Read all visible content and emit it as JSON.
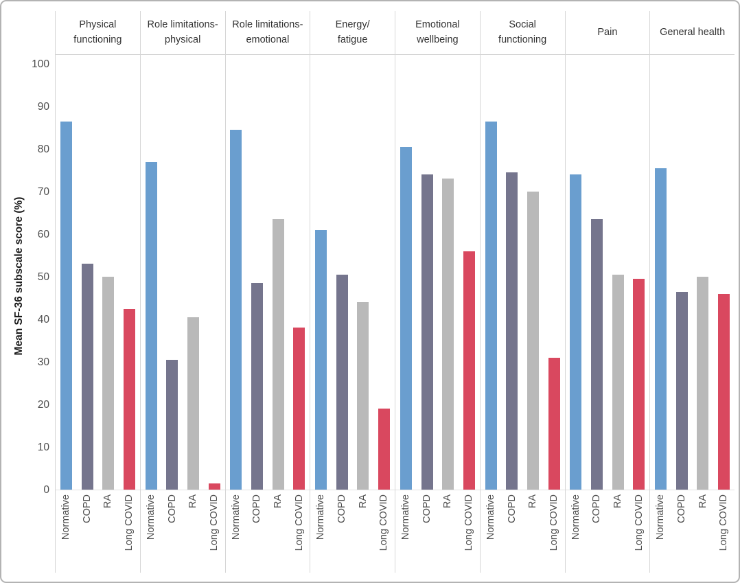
{
  "chart_data": {
    "type": "bar",
    "title": "",
    "ylabel": "Mean SF-36 subscale score (%)",
    "ylim": [
      0,
      100
    ],
    "ytick_step": 10,
    "grid": false,
    "legend": "none (groups labeled on x-axis)",
    "groups": [
      "Normative",
      "COPD",
      "RA",
      "Long COVID"
    ],
    "colors": [
      "#6A9ECF",
      "#75758D",
      "#B9B9B9",
      "#D9485F"
    ],
    "panels": [
      {
        "title": "Physical functioning",
        "title_lines": [
          "Physical",
          "functioning"
        ],
        "values": [
          86.5,
          53.0,
          50.0,
          42.5
        ]
      },
      {
        "title": "Role limitations-physical",
        "title_lines": [
          "Role limitations-",
          "physical"
        ],
        "values": [
          77.0,
          30.5,
          40.5,
          1.5
        ]
      },
      {
        "title": "Role limitations-emotional",
        "title_lines": [
          "Role limitations-",
          "emotional"
        ],
        "values": [
          84.5,
          48.5,
          63.5,
          38.0
        ]
      },
      {
        "title": "Energy/fatigue",
        "title_lines": [
          "Energy/",
          "fatigue"
        ],
        "values": [
          61.0,
          50.5,
          44.0,
          19.0
        ]
      },
      {
        "title": "Emotional wellbeing",
        "title_lines": [
          "Emotional",
          "wellbeing"
        ],
        "values": [
          80.5,
          74.0,
          73.0,
          56.0
        ]
      },
      {
        "title": "Social functioning",
        "title_lines": [
          "Social",
          "functioning"
        ],
        "values": [
          86.5,
          74.5,
          70.0,
          31.0
        ]
      },
      {
        "title": "Pain",
        "title_lines": [
          "Pain"
        ],
        "values": [
          74.0,
          63.5,
          50.5,
          49.5
        ]
      },
      {
        "title": "General health",
        "title_lines": [
          "General health"
        ],
        "values": [
          75.5,
          46.5,
          50.0,
          46.0
        ]
      }
    ]
  }
}
